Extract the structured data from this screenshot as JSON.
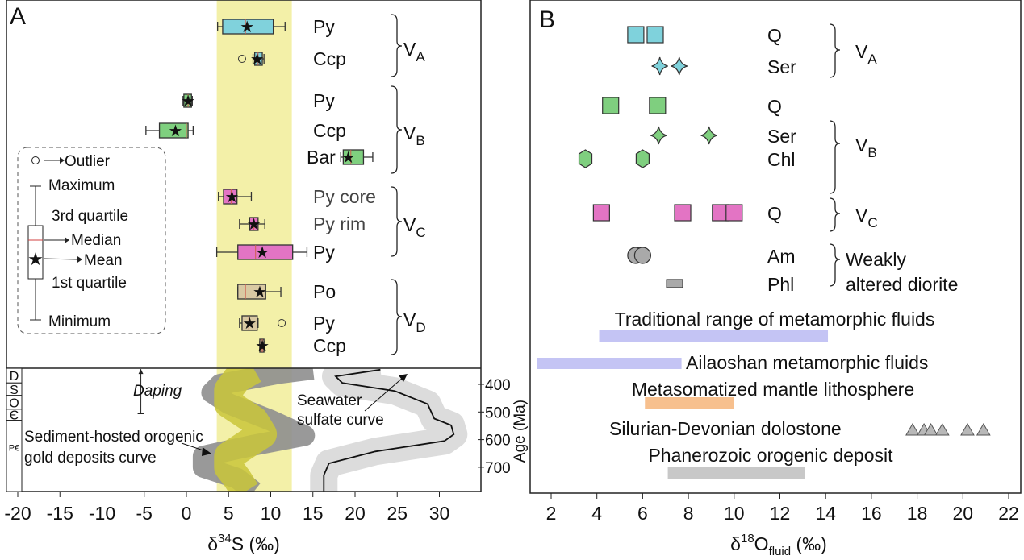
{
  "chart_data": [
    {
      "panel": "A",
      "type": "boxplot",
      "panel_label": "A",
      "xlabel": {
        "prefix": "δ",
        "sup": "34",
        "main": "S (‰)"
      },
      "xlim": [
        -21,
        35
      ],
      "xticks": [
        "-20",
        "-15",
        "-10",
        "-5",
        "0",
        "5",
        "10",
        "15",
        "20",
        "25",
        "30"
      ],
      "xtick_values": [
        -20,
        -15,
        -10,
        -5,
        0,
        5,
        10,
        15,
        20,
        25,
        30
      ],
      "highlight_band": {
        "from": 3.6,
        "to": 12.5,
        "color": "#f3f0a8"
      },
      "colors": {
        "VA": "#80d2dc",
        "VB": "#7fd07f",
        "VC": "#e374c4",
        "VD": "#d9c9a3",
        "VD_Ccp": "#c8a890"
      },
      "groups": [
        {
          "key": "VA",
          "label": {
            "main": "V",
            "sub": "A"
          },
          "rows": [
            {
              "mineral": "Py",
              "min": 3.7,
              "q1": 4.3,
              "median": 7.0,
              "q3": 10.3,
              "max": 11.7,
              "mean": 7.2,
              "outliers": []
            },
            {
              "mineral": "Ccp",
              "min": 7.9,
              "q1": 8.1,
              "median": 8.5,
              "q3": 9.0,
              "max": 9.2,
              "mean": 8.4,
              "outliers": [
                6.6
              ]
            }
          ]
        },
        {
          "key": "VB",
          "label": {
            "main": "V",
            "sub": "B"
          },
          "rows": [
            {
              "mineral": "Py",
              "min": -0.4,
              "q1": -0.3,
              "median": 0.2,
              "q3": 0.6,
              "max": 0.7,
              "mean": 0.2,
              "outliers": []
            },
            {
              "mineral": "Ccp",
              "min": -4.8,
              "q1": -3.2,
              "median": 0.0,
              "q3": 0.2,
              "max": 0.8,
              "mean": -1.3,
              "outliers": []
            },
            {
              "mineral": "Bar",
              "min": 18.3,
              "q1": 18.6,
              "median": 19.5,
              "q3": 21.0,
              "max": 22.1,
              "mean": 19.2,
              "outliers": []
            }
          ]
        },
        {
          "key": "VC",
          "label": {
            "main": "V",
            "sub": "C"
          },
          "rows": [
            {
              "mineral": "Py core",
              "min": 3.8,
              "q1": 4.4,
              "median": 5.3,
              "q3": 6.0,
              "max": 7.7,
              "mean": 5.4,
              "outliers": []
            },
            {
              "mineral": "Py rim",
              "min": 6.3,
              "q1": 7.5,
              "median": 8.0,
              "q3": 8.5,
              "max": 9.3,
              "mean": 8.0,
              "outliers": []
            },
            {
              "mineral": "Py",
              "min": 3.6,
              "q1": 6.1,
              "median": 8.2,
              "q3": 12.6,
              "max": 14.3,
              "mean": 9.0,
              "outliers": []
            }
          ]
        },
        {
          "key": "VD",
          "label": {
            "main": "V",
            "sub": "D"
          },
          "rows": [
            {
              "mineral": "Po",
              "min": 6.1,
              "q1": 6.1,
              "median": 7.0,
              "q3": 9.4,
              "max": 11.2,
              "mean": 8.7,
              "outliers": []
            },
            {
              "mineral": "Py",
              "min": 6.3,
              "q1": 6.6,
              "median": 7.4,
              "q3": 8.4,
              "max": 8.5,
              "mean": 7.5,
              "outliers": [
                11.3
              ]
            },
            {
              "mineral": "Ccp",
              "min": 8.7,
              "q1": 8.7,
              "median": 9.0,
              "q3": 9.2,
              "max": 9.2,
              "mean": 9.0,
              "outliers": []
            }
          ]
        }
      ],
      "legend": {
        "outlier": "Outlier",
        "maximum": "Maximum",
        "q3": "3rd quartile",
        "median": "Median",
        "mean": "Mean",
        "q1": "1st quartile",
        "minimum": "Minimum"
      },
      "age_panel": {
        "ylabel": "Age (Ma)",
        "ylim": [
          342,
          788
        ],
        "yticks": [
          "400",
          "500",
          "600",
          "700"
        ],
        "ytick_values": [
          400,
          500,
          600,
          700
        ],
        "periods": [
          {
            "label": "D",
            "from": 342,
            "to": 395
          },
          {
            "label": "S",
            "from": 395,
            "to": 440
          },
          {
            "label": "O",
            "from": 440,
            "to": 490
          },
          {
            "label": "Є",
            "from": 490,
            "to": 530
          },
          {
            "label": "P€",
            "from": 530,
            "to": 788
          }
        ],
        "daping": {
          "label": "Daping",
          "x": -5.4,
          "age_from": 345,
          "age_to": 505
        },
        "seawater_curve": {
          "label_line1": "Seawater",
          "label_line2": "sulfate curve",
          "points": [
            [
              23,
              347
            ],
            [
              17.7,
              371
            ],
            [
              18.5,
              395
            ],
            [
              24.7,
              424
            ],
            [
              28.6,
              471
            ],
            [
              29.4,
              524
            ],
            [
              31.4,
              548
            ],
            [
              31.7,
              581
            ],
            [
              30.6,
              605
            ],
            [
              22.4,
              643
            ],
            [
              16.9,
              686
            ],
            [
              16.3,
              729
            ],
            [
              16.3,
              788
            ]
          ]
        },
        "sediment_hosted_curve": {
          "label_line1": "Sediment-hosted orogenic",
          "label_line2": "gold deposits curve",
          "gray_points": [
            [
              15,
              345
            ],
            [
              11,
              360
            ],
            [
              4,
              400
            ],
            [
              3,
              430
            ],
            [
              5,
              470
            ],
            [
              10,
              530
            ],
            [
              14,
              585
            ],
            [
              8,
              620
            ],
            [
              2,
              660
            ],
            [
              2,
              700
            ],
            [
              6,
              740
            ],
            [
              8,
              788
            ]
          ],
          "olive_points": [
            [
              8,
              345
            ],
            [
              6,
              380
            ],
            [
              5,
              420
            ],
            [
              5,
              470
            ],
            [
              8,
              530
            ],
            [
              9,
              580
            ],
            [
              7,
              620
            ],
            [
              5,
              660
            ],
            [
              5,
              700
            ],
            [
              6,
              740
            ],
            [
              7,
              788
            ]
          ]
        }
      }
    },
    {
      "panel": "B",
      "type": "scatter",
      "panel_label": "B",
      "xlabel": {
        "prefix": "δ",
        "sup": "18",
        "main": "O",
        "sub": "fluid",
        "unit": " (‰)"
      },
      "xlim": [
        1,
        23
      ],
      "xticks": [
        "2",
        "4",
        "6",
        "8",
        "10",
        "12",
        "14",
        "16",
        "18",
        "20",
        "22"
      ],
      "xtick_values": [
        2,
        4,
        6,
        8,
        10,
        12,
        14,
        16,
        18,
        20,
        22
      ],
      "groups": [
        {
          "key": "VA",
          "label": {
            "main": "V",
            "sub": "A"
          },
          "color": "#7fd2dc",
          "rows": [
            {
              "mineral": "Q",
              "marker": "square",
              "values": [
                5.7,
                6.55
              ]
            },
            {
              "mineral": "Ser",
              "marker": "star4",
              "values": [
                6.75,
                7.6
              ]
            }
          ]
        },
        {
          "key": "VB",
          "label": {
            "main": "V",
            "sub": "B"
          },
          "color": "#7fcf7f",
          "rows": [
            {
              "mineral": "Q",
              "marker": "square",
              "values": [
                4.6,
                6.65
              ]
            },
            {
              "mineral": "Ser",
              "marker": "star4",
              "values": [
                6.7,
                8.9
              ]
            },
            {
              "mineral": "Chl",
              "marker": "hexagon",
              "values": [
                3.5,
                6.0
              ]
            }
          ]
        },
        {
          "key": "VC",
          "label": {
            "main": "V",
            "sub": "C"
          },
          "color": "#e374c4",
          "rows": [
            {
              "mineral": "Q",
              "marker": "square",
              "values": [
                4.2,
                7.75,
                9.4,
                10.0
              ]
            }
          ]
        },
        {
          "key": "diorite",
          "label": {
            "line1": "Weakly",
            "line2": "altered diorite"
          },
          "color": "#a9a9a9",
          "rows": [
            {
              "mineral": "Am",
              "marker": "circle",
              "values": [
                5.7,
                6.0
              ]
            },
            {
              "mineral": "Phl",
              "marker": "smallrect",
              "values": [
                7.4
              ]
            }
          ]
        }
      ],
      "ranges": [
        {
          "label": "Traditional range of  metamorphic fluids",
          "from": 4.1,
          "to": 14.1,
          "color": "#c4c4f4"
        },
        {
          "label": "Ailaoshan metamorphic fluids",
          "from": 1.4,
          "to": 7.7,
          "color": "#c4c4f4"
        },
        {
          "label": "Metasomatized mantle lithosphere",
          "from": 6.1,
          "to": 10.0,
          "color": "#f7c08e"
        },
        {
          "label": "Silurian-Devonian dolostone",
          "points": [
            17.8,
            18.3,
            18.6,
            19.1,
            20.2,
            20.9
          ],
          "color": "#b8b8b8"
        },
        {
          "label": "Phanerozoic orogenic deposit",
          "from": 7.1,
          "to": 13.1,
          "color": "#c8c8c8"
        }
      ]
    }
  ]
}
